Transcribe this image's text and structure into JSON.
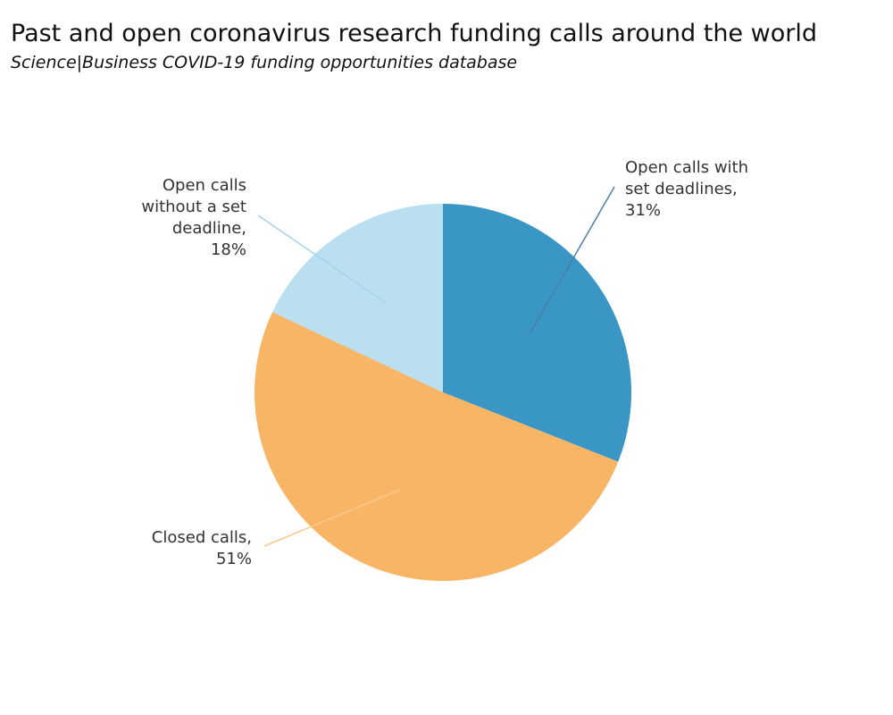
{
  "chart_data": {
    "type": "pie",
    "title": "Past and open coronavirus research funding calls around the world",
    "subtitle": "Science|Business COVID-19 funding opportunities database",
    "slices": [
      {
        "label": "Open calls with set deadlines",
        "display_lines": [
          "Open calls with",
          "set deadlines,",
          "31%"
        ],
        "value": 31,
        "color": "#3a96c5",
        "leader_color": "#4a7fa8"
      },
      {
        "label": "Closed calls",
        "display_lines": [
          "Closed calls,",
          "51%"
        ],
        "value": 51,
        "color": "#f8b566",
        "leader_color": "#f8c98f"
      },
      {
        "label": "Open calls without a set deadline",
        "display_lines": [
          "Open calls",
          "without a set",
          "deadline,",
          "18%"
        ],
        "value": 18,
        "color": "#badff1",
        "leader_color": "#a6d3ea"
      }
    ]
  }
}
